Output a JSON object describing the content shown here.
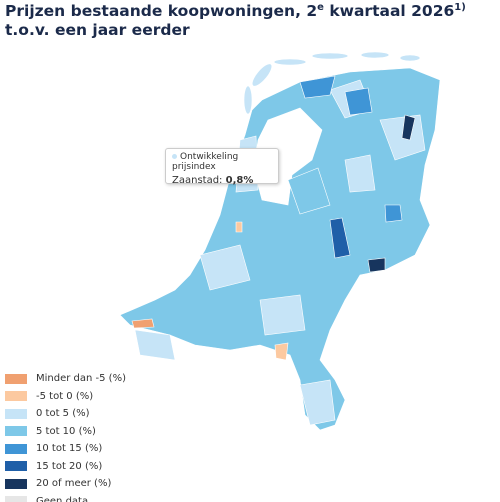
{
  "header": {
    "title": {
      "before": "Prijzen bestaande koopwoningen, 2",
      "sup1": "e",
      "middle": " kwartaal 2026",
      "sup2": "1)",
      "after": " t.o.v. een jaar eerder"
    }
  },
  "tooltip": {
    "heading": "Ontwikkeling prijsindex",
    "region": "Zaanstad:",
    "value": "0,8%"
  },
  "legend": [
    {
      "label": "Minder dan -5 (%)",
      "color": "#f0a070"
    },
    {
      "label": "-5 tot 0 (%)",
      "color": "#fcc9a0"
    },
    {
      "label": "0 tot 5 (%)",
      "color": "#c6e4f7"
    },
    {
      "label": "5 tot 10 (%)",
      "color": "#7ec8e8"
    },
    {
      "label": "10 tot 15 (%)",
      "color": "#3f95d6"
    },
    {
      "label": "15 tot 20 (%)",
      "color": "#1f5fa8"
    },
    {
      "label": "20 of meer (%)",
      "color": "#17355e"
    },
    {
      "label": "Geen data",
      "color": "#e6e6e6"
    }
  ]
}
